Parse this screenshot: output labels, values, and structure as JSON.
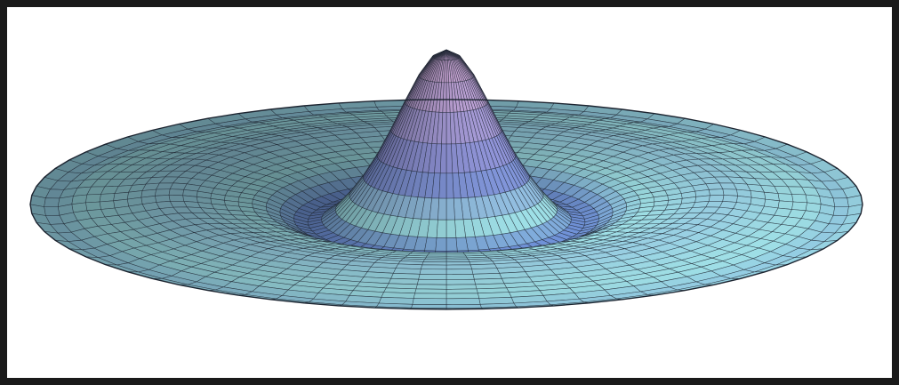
{
  "figure": {
    "description_visible_text": "",
    "surface": {
      "type": "radial damped wave (sinc-like) surface mesh",
      "colors": {
        "frame": "#1a1a1a",
        "background": "#ffffff",
        "mesh_line": "#1c2430",
        "peak_color": "#c9a6d6",
        "mid_color": "#7f8fd8",
        "rim_color": "#9fe0e6",
        "trough_color": "#6a88d6"
      }
    }
  }
}
